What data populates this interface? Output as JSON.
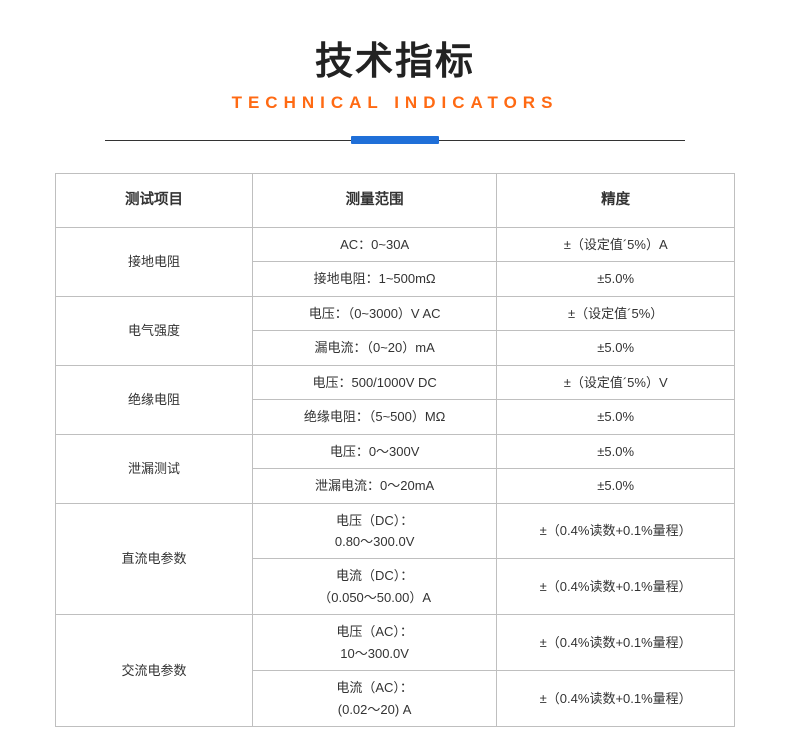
{
  "header": {
    "title_cn": "技术指标",
    "title_en": "TECHNICAL INDICATORS"
  },
  "table": {
    "columns": [
      "测试项目",
      "测量范围",
      "精度"
    ],
    "groups": [
      {
        "label": "接地电阻",
        "rows": [
          {
            "range": "AC：0~30A",
            "accuracy": "±（设定值´5%）A"
          },
          {
            "range": "接地电阻：1~500mΩ",
            "accuracy": "±5.0%"
          }
        ]
      },
      {
        "label": "电气强度",
        "rows": [
          {
            "range": "电压：（0~3000）V AC",
            "accuracy": "±（设定值´5%）"
          },
          {
            "range": "漏电流：（0~20）mA",
            "accuracy": "±5.0%"
          }
        ]
      },
      {
        "label": "绝缘电阻",
        "rows": [
          {
            "range": "电压：500/1000V DC",
            "accuracy": "±（设定值´5%）V"
          },
          {
            "range": "绝缘电阻：（5~500）MΩ",
            "accuracy": "±5.0%"
          }
        ]
      },
      {
        "label": "泄漏测试",
        "rows": [
          {
            "range": "电压：0～300V",
            "accuracy": "±5.0%"
          },
          {
            "range": "泄漏电流：0～20mA",
            "accuracy": "±5.0%"
          }
        ]
      },
      {
        "label": "直流电参数",
        "rows": [
          {
            "range": "电压（DC）：\n0.80～300.0V",
            "accuracy": "±（0.4%读数+0.1%量程）"
          },
          {
            "range": "电流（DC）：\n（0.050～50.00）A",
            "accuracy": "±（0.4%读数+0.1%量程）"
          }
        ]
      },
      {
        "label": "交流电参数",
        "rows": [
          {
            "range": "电压（AC）：\n10～300.0V",
            "accuracy": "±（0.4%读数+0.1%量程）"
          },
          {
            "range": "电流（AC）：\n(0.02～20) A",
            "accuracy": "±（0.4%读数+0.1%量程）"
          }
        ]
      }
    ]
  },
  "styling": {
    "title_cn_color": "#222222",
    "title_en_color": "#ff6a13",
    "divider_line_color": "#333333",
    "divider_bar_color": "#1f6fd8",
    "table_border_color": "#bfbfbf",
    "table_text_color": "#333333",
    "background_color": "#ffffff",
    "title_cn_fontsize": 38,
    "title_en_fontsize": 17,
    "cell_fontsize": 13,
    "header_fontsize": 14.5,
    "divider_width": 580,
    "divider_bar_width": 88,
    "divider_bar_height": 8,
    "column_widths_pct": [
      29,
      36,
      35
    ]
  }
}
